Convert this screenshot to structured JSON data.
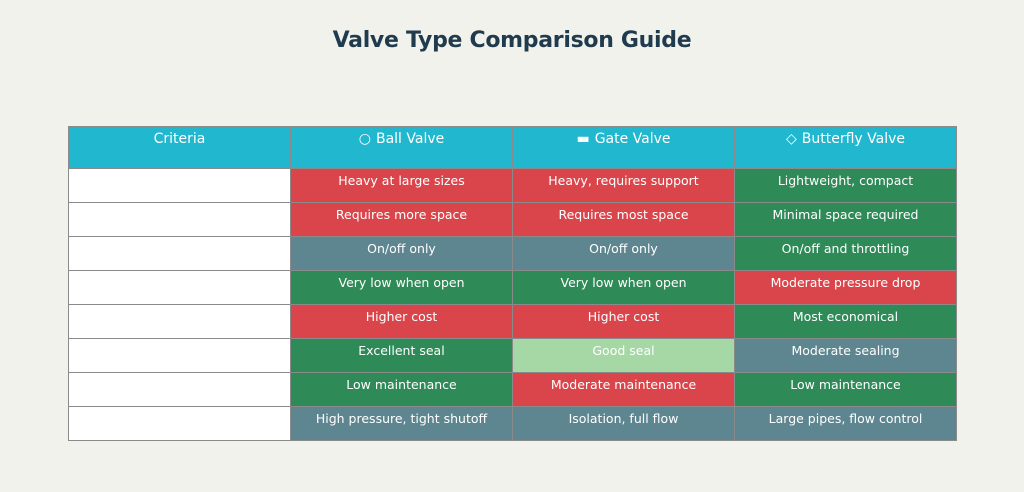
{
  "title": "Valve Type Comparison Guide",
  "colors": {
    "header": "#21b8cf",
    "bad": "#d9454a",
    "good": "#2e8a57",
    "neutral": "#5d8690",
    "fair": "#a5d8a5",
    "criteria": "#ffffff"
  },
  "chart_data": {
    "type": "table",
    "columns": [
      {
        "label": "Criteria",
        "icon": ""
      },
      {
        "label": "Ball Valve",
        "icon": "○"
      },
      {
        "label": "Gate Valve",
        "icon": "▬"
      },
      {
        "label": "Butterfly Valve",
        "icon": "◇"
      }
    ],
    "rows": [
      {
        "criteria": "",
        "cells": [
          {
            "text": "Heavy at large sizes",
            "rating": "bad"
          },
          {
            "text": "Heavy, requires support",
            "rating": "bad"
          },
          {
            "text": "Lightweight, compact",
            "rating": "good"
          }
        ]
      },
      {
        "criteria": "",
        "cells": [
          {
            "text": "Requires more space",
            "rating": "bad"
          },
          {
            "text": "Requires most space",
            "rating": "bad"
          },
          {
            "text": "Minimal space required",
            "rating": "good"
          }
        ]
      },
      {
        "criteria": "",
        "cells": [
          {
            "text": "On/off only",
            "rating": "neutral"
          },
          {
            "text": "On/off only",
            "rating": "neutral"
          },
          {
            "text": "On/off and throttling",
            "rating": "good"
          }
        ]
      },
      {
        "criteria": "",
        "cells": [
          {
            "text": "Very low when open",
            "rating": "good"
          },
          {
            "text": "Very low when open",
            "rating": "good"
          },
          {
            "text": "Moderate pressure drop",
            "rating": "bad"
          }
        ]
      },
      {
        "criteria": "",
        "cells": [
          {
            "text": "Higher cost",
            "rating": "bad"
          },
          {
            "text": "Higher cost",
            "rating": "bad"
          },
          {
            "text": "Most economical",
            "rating": "good"
          }
        ]
      },
      {
        "criteria": "",
        "cells": [
          {
            "text": "Excellent seal",
            "rating": "good"
          },
          {
            "text": "Good seal",
            "rating": "fair"
          },
          {
            "text": "Moderate sealing",
            "rating": "neutral"
          }
        ]
      },
      {
        "criteria": "",
        "cells": [
          {
            "text": "Low maintenance",
            "rating": "good"
          },
          {
            "text": "Moderate maintenance",
            "rating": "bad"
          },
          {
            "text": "Low maintenance",
            "rating": "good"
          }
        ]
      },
      {
        "criteria": "",
        "cells": [
          {
            "text": "High pressure, tight shutoff",
            "rating": "neutral"
          },
          {
            "text": "Isolation, full flow",
            "rating": "neutral"
          },
          {
            "text": "Large pipes, flow control",
            "rating": "neutral"
          }
        ]
      }
    ]
  }
}
